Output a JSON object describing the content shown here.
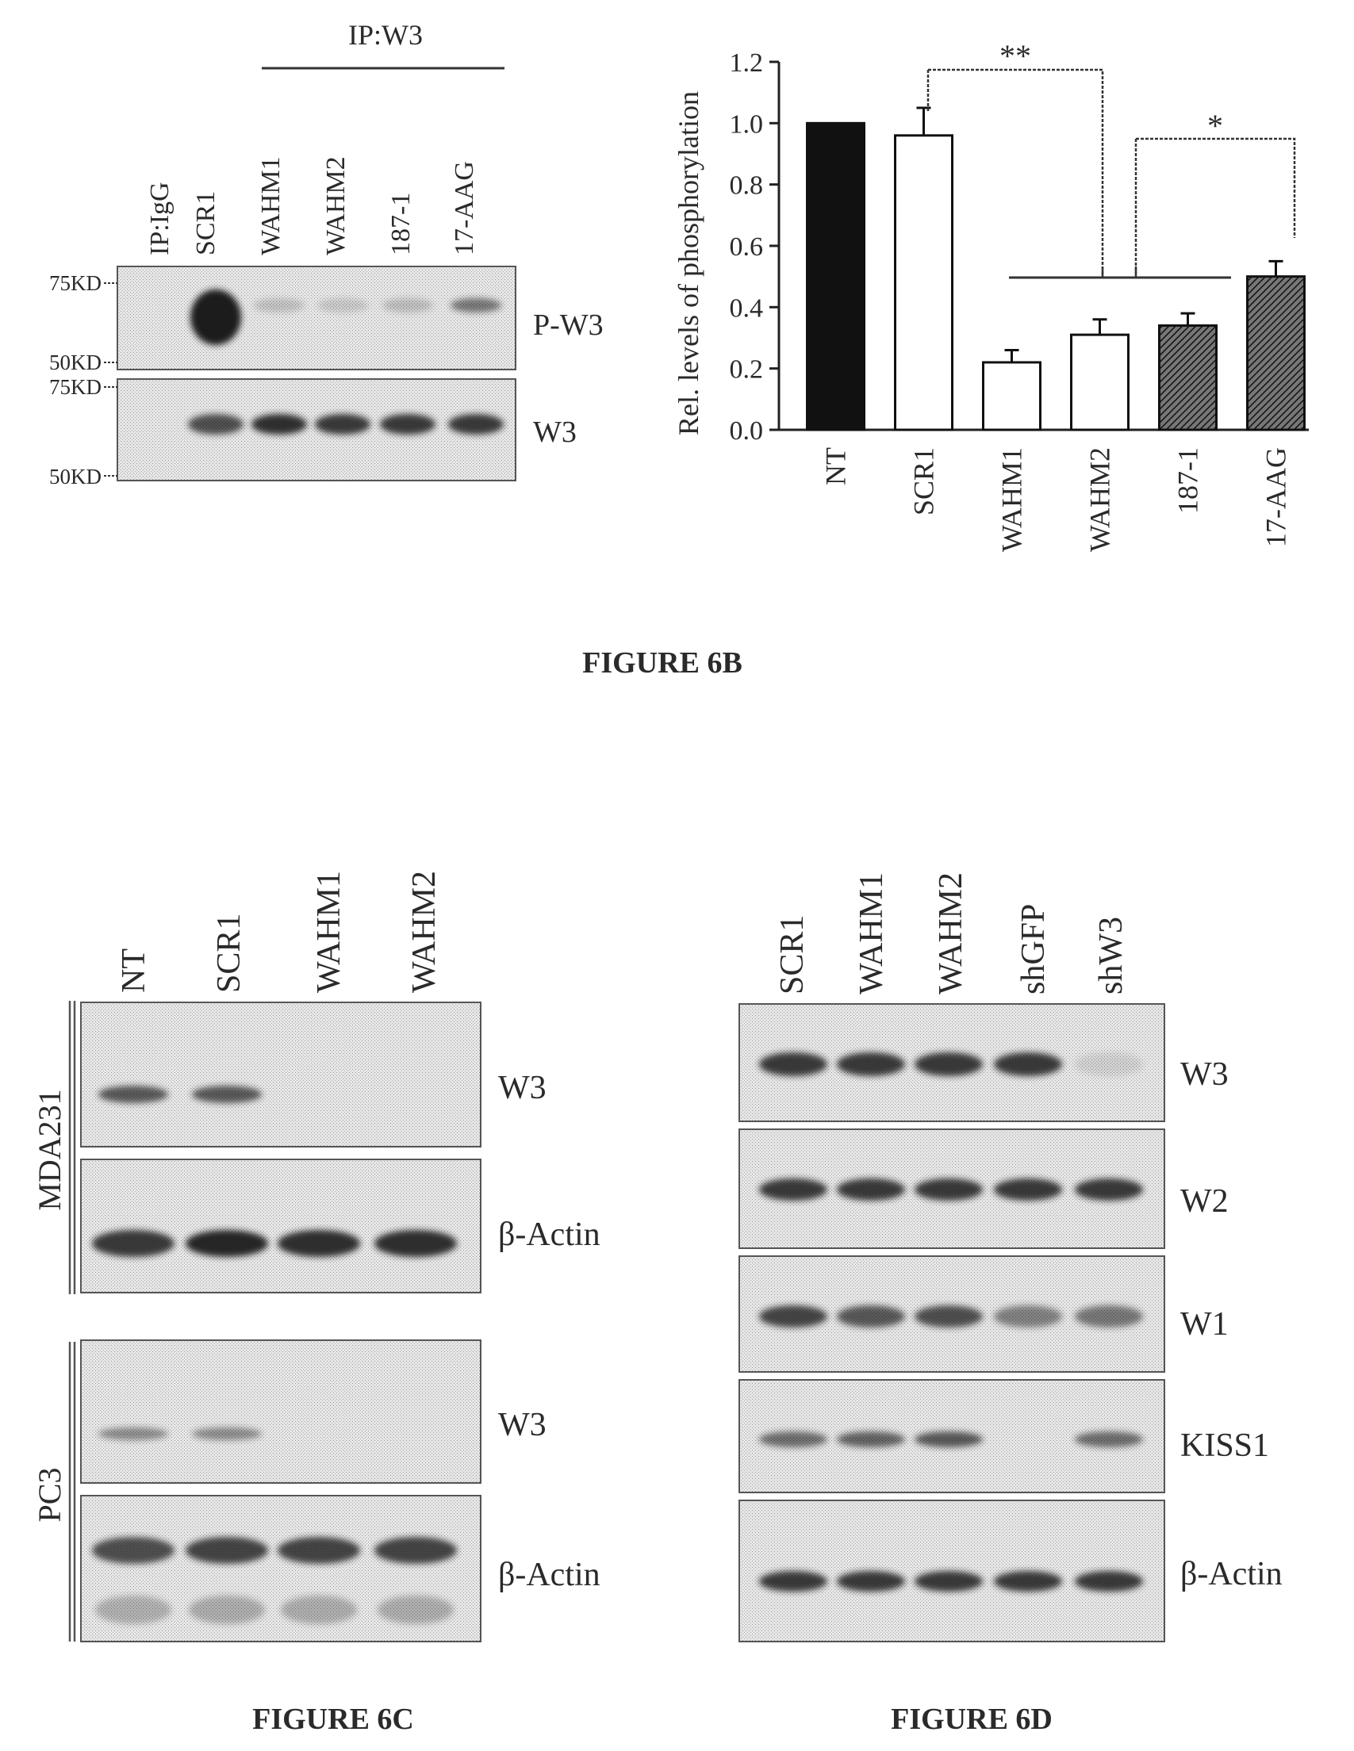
{
  "figure_6b": {
    "blot": {
      "ip_igg": "IP:IgG",
      "ip_w3": "IP:W3",
      "lanes": [
        "SCR1",
        "WAHM1",
        "WAHM2",
        "187-1",
        "17-AAG"
      ],
      "markers_top": [
        "75KD",
        "50KD"
      ],
      "markers_bottom": [
        "75KD",
        "50KD"
      ],
      "labels": [
        "P-W3",
        "W3"
      ],
      "band_intensity": {
        "p_w3": [
          0,
          1.0,
          0.18,
          0.15,
          0.2,
          0.55
        ],
        "w3": [
          0,
          0.75,
          0.9,
          0.85,
          0.85,
          0.85
        ]
      }
    },
    "caption": "FIGURE 6B"
  },
  "chart_data": {
    "type": "bar",
    "categories": [
      "NT",
      "SCR1",
      "WAHM1",
      "WAHM2",
      "187-1",
      "17-AAG"
    ],
    "values": [
      1.0,
      0.96,
      0.22,
      0.31,
      0.34,
      0.5
    ],
    "errors": [
      0.0,
      0.09,
      0.04,
      0.05,
      0.04,
      0.05
    ],
    "fills": [
      "solid",
      "open",
      "open",
      "open",
      "hatched",
      "hatched"
    ],
    "ylabel": "Rel. levels of phosphorylation",
    "xlabel": "",
    "ylim": [
      0.0,
      1.2
    ],
    "yticks": [
      "0.0",
      "0.2",
      "0.4",
      "0.6",
      "0.8",
      "1.0",
      "1.2"
    ],
    "significance": [
      "**",
      "*"
    ],
    "grid": false
  },
  "figure_6c": {
    "lanes": [
      "NT",
      "SCR1",
      "WAHM1",
      "WAHM2"
    ],
    "cell_lines": [
      "MDA231",
      "PC3"
    ],
    "labels": [
      "W3",
      "β-Actin",
      "W3",
      "β-Actin"
    ],
    "band_intensity": {
      "mda_w3": [
        0.7,
        0.7,
        0,
        0
      ],
      "mda_actin": [
        0.85,
        0.95,
        0.9,
        0.9
      ],
      "pc3_w3": [
        0.45,
        0.45,
        0,
        0
      ],
      "pc3_actin": [
        0.75,
        0.8,
        0.8,
        0.8
      ]
    },
    "caption": "FIGURE 6C"
  },
  "figure_6d": {
    "lanes": [
      "SCR1",
      "WAHM1",
      "WAHM2",
      "shGFP",
      "shW3"
    ],
    "labels": [
      "W3",
      "W2",
      "W1",
      "KISS1",
      "β-Actin"
    ],
    "band_intensity": {
      "w3": [
        0.85,
        0.85,
        0.85,
        0.85,
        0.1
      ],
      "w2": [
        0.85,
        0.85,
        0.85,
        0.85,
        0.85
      ],
      "w1": [
        0.8,
        0.7,
        0.75,
        0.5,
        0.55
      ],
      "kiss1": [
        0.6,
        0.65,
        0.7,
        0.0,
        0.6
      ],
      "actin": [
        0.85,
        0.85,
        0.85,
        0.85,
        0.85
      ]
    },
    "caption": "FIGURE 6D"
  }
}
